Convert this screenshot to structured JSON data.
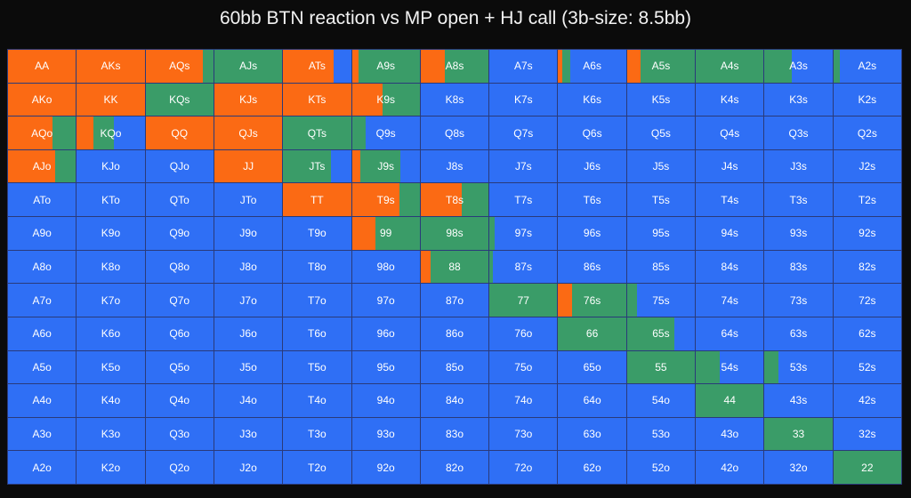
{
  "colors": {
    "threebet": "#fb6a14",
    "call": "#3a9c68",
    "fold": "#2f6ff5",
    "background": "#0b0b0b",
    "grid_line": "#2a3a7a"
  },
  "chart_data": {
    "type": "heatmap",
    "title": "60bb BTN reaction vs MP open + HJ call (3b-size: 8.5bb)",
    "action_order": [
      "threebet",
      "call",
      "fold"
    ],
    "ranks": [
      "A",
      "K",
      "Q",
      "J",
      "T",
      "9",
      "8",
      "7",
      "6",
      "5",
      "4",
      "3",
      "2"
    ],
    "rows": [
      {
        "hands": [
          "AA",
          "AKs",
          "AQs",
          "AJs",
          "ATs",
          "A9s",
          "A8s",
          "A7s",
          "A6s",
          "A5s",
          "A4s",
          "A3s",
          "A2s"
        ],
        "threebet": [
          1,
          1,
          0.85,
          0,
          0.75,
          0.1,
          0.35,
          0,
          0.06,
          0.2,
          0,
          0,
          0
        ],
        "call": [
          0,
          0,
          0.15,
          1,
          0,
          0.9,
          0.65,
          0,
          0.12,
          0.8,
          1,
          0.4,
          0.1
        ]
      },
      {
        "hands": [
          "AKo",
          "KK",
          "KQs",
          "KJs",
          "KTs",
          "K9s",
          "K8s",
          "K7s",
          "K6s",
          "K5s",
          "K4s",
          "K3s",
          "K2s"
        ],
        "threebet": [
          1,
          1,
          0,
          1,
          1,
          0.45,
          0,
          0,
          0,
          0,
          0,
          0,
          0
        ],
        "call": [
          0,
          0,
          1,
          0,
          0,
          0.55,
          0,
          0,
          0,
          0,
          0,
          0,
          0
        ]
      },
      {
        "hands": [
          "AQo",
          "KQo",
          "QQ",
          "QJs",
          "QTs",
          "Q9s",
          "Q8s",
          "Q7s",
          "Q6s",
          "Q5s",
          "Q4s",
          "Q3s",
          "Q2s"
        ],
        "threebet": [
          0.65,
          0.25,
          1,
          1,
          0,
          0,
          0,
          0,
          0,
          0,
          0,
          0,
          0
        ],
        "call": [
          0.35,
          0.3,
          0,
          0,
          1,
          0.2,
          0,
          0,
          0,
          0,
          0,
          0,
          0
        ]
      },
      {
        "hands": [
          "AJo",
          "KJo",
          "QJo",
          "JJ",
          "JTs",
          "J9s",
          "J8s",
          "J7s",
          "J6s",
          "J5s",
          "J4s",
          "J3s",
          "J2s"
        ],
        "threebet": [
          0.7,
          0,
          0,
          1,
          0,
          0.12,
          0,
          0,
          0,
          0,
          0,
          0,
          0
        ],
        "call": [
          0.3,
          0,
          0,
          0,
          0.7,
          0.6,
          0,
          0,
          0,
          0,
          0,
          0,
          0
        ]
      },
      {
        "hands": [
          "ATo",
          "KTo",
          "QTo",
          "JTo",
          "TT",
          "T9s",
          "T8s",
          "T7s",
          "T6s",
          "T5s",
          "T4s",
          "T3s",
          "T2s"
        ],
        "threebet": [
          0,
          0,
          0,
          0,
          1,
          0.7,
          0.6,
          0,
          0,
          0,
          0,
          0,
          0
        ],
        "call": [
          0,
          0,
          0,
          0,
          0,
          0.3,
          0.4,
          0,
          0,
          0,
          0,
          0,
          0
        ]
      },
      {
        "hands": [
          "A9o",
          "K9o",
          "Q9o",
          "J9o",
          "T9o",
          "99",
          "98s",
          "97s",
          "96s",
          "95s",
          "94s",
          "93s",
          "92s"
        ],
        "threebet": [
          0,
          0,
          0,
          0,
          0,
          0.35,
          0,
          0,
          0,
          0,
          0,
          0,
          0
        ],
        "call": [
          0,
          0,
          0,
          0,
          0,
          0.65,
          1,
          0.08,
          0,
          0,
          0,
          0,
          0
        ]
      },
      {
        "hands": [
          "A8o",
          "K8o",
          "Q8o",
          "J8o",
          "T8o",
          "98o",
          "88",
          "87s",
          "86s",
          "85s",
          "84s",
          "83s",
          "82s"
        ],
        "threebet": [
          0,
          0,
          0,
          0,
          0,
          0,
          0.15,
          0,
          0,
          0,
          0,
          0,
          0
        ],
        "call": [
          0,
          0,
          0,
          0,
          0,
          0,
          0.85,
          0.05,
          0,
          0,
          0,
          0,
          0
        ]
      },
      {
        "hands": [
          "A7o",
          "K7o",
          "Q7o",
          "J7o",
          "T7o",
          "97o",
          "87o",
          "77",
          "76s",
          "75s",
          "74s",
          "73s",
          "72s"
        ],
        "threebet": [
          0,
          0,
          0,
          0,
          0,
          0,
          0,
          0,
          0.2,
          0,
          0,
          0,
          0
        ],
        "call": [
          0,
          0,
          0,
          0,
          0,
          0,
          0,
          1,
          0.8,
          0.15,
          0,
          0,
          0
        ]
      },
      {
        "hands": [
          "A6o",
          "K6o",
          "Q6o",
          "J6o",
          "T6o",
          "96o",
          "86o",
          "76o",
          "66",
          "65s",
          "64s",
          "63s",
          "62s"
        ],
        "threebet": [
          0,
          0,
          0,
          0,
          0,
          0,
          0,
          0,
          0,
          0,
          0,
          0,
          0
        ],
        "call": [
          0,
          0,
          0,
          0,
          0,
          0,
          0,
          0,
          1,
          0.7,
          0,
          0,
          0
        ]
      },
      {
        "hands": [
          "A5o",
          "K5o",
          "Q5o",
          "J5o",
          "T5o",
          "95o",
          "85o",
          "75o",
          "65o",
          "55",
          "54s",
          "53s",
          "52s"
        ],
        "threebet": [
          0,
          0,
          0,
          0,
          0,
          0,
          0,
          0,
          0,
          0,
          0,
          0,
          0
        ],
        "call": [
          0,
          0,
          0,
          0,
          0,
          0,
          0,
          0,
          0,
          1,
          0.35,
          0.2,
          0
        ]
      },
      {
        "hands": [
          "A4o",
          "K4o",
          "Q4o",
          "J4o",
          "T4o",
          "94o",
          "84o",
          "74o",
          "64o",
          "54o",
          "44",
          "43s",
          "42s"
        ],
        "threebet": [
          0,
          0,
          0,
          0,
          0,
          0,
          0,
          0,
          0,
          0,
          0,
          0,
          0
        ],
        "call": [
          0,
          0,
          0,
          0,
          0,
          0,
          0,
          0,
          0,
          0,
          1,
          0,
          0
        ]
      },
      {
        "hands": [
          "A3o",
          "K3o",
          "Q3o",
          "J3o",
          "T3o",
          "93o",
          "83o",
          "73o",
          "63o",
          "53o",
          "43o",
          "33",
          "32s"
        ],
        "threebet": [
          0,
          0,
          0,
          0,
          0,
          0,
          0,
          0,
          0,
          0,
          0,
          0,
          0
        ],
        "call": [
          0,
          0,
          0,
          0,
          0,
          0,
          0,
          0,
          0,
          0,
          0,
          1,
          0
        ]
      },
      {
        "hands": [
          "A2o",
          "K2o",
          "Q2o",
          "J2o",
          "T2o",
          "92o",
          "82o",
          "72o",
          "62o",
          "52o",
          "42o",
          "32o",
          "22"
        ],
        "threebet": [
          0,
          0,
          0,
          0,
          0,
          0,
          0,
          0,
          0,
          0,
          0,
          0,
          0
        ],
        "call": [
          0,
          0,
          0,
          0,
          0,
          0,
          0,
          0,
          0,
          0,
          0,
          0,
          1
        ]
      }
    ]
  }
}
